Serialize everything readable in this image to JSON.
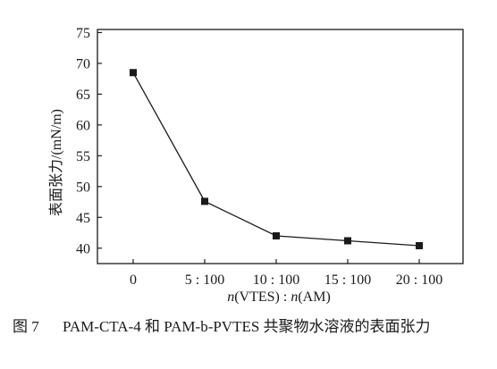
{
  "chart_data": {
    "type": "line",
    "categories": [
      "0",
      "5 : 100",
      "10 : 100",
      "15 : 100",
      "20 : 100"
    ],
    "series": [
      {
        "values": [
          68.5,
          47.6,
          42.0,
          41.2,
          40.4
        ]
      }
    ],
    "title": "",
    "xlabel": "n(VTES) : n(AM)",
    "xlabel_parts": {
      "n1": "n",
      "mid": "(VTES) : ",
      "n2": "n",
      "end": "(AM)"
    },
    "ylabel": "表面张力/(mN/m)",
    "ylim": [
      37.5,
      75.5
    ],
    "yticks": [
      40,
      45,
      50,
      55,
      60,
      65,
      70,
      75
    ],
    "ytick_labels": [
      "40",
      "45",
      "50",
      "55",
      "60",
      "65",
      "70",
      "75"
    ],
    "marker": "square",
    "grid": false,
    "line_color": "#1a1a1a"
  },
  "caption": {
    "label": "图 7",
    "text": "PAM-CTA-4 和 PAM-b-PVTES 共聚物水溶液的表面张力"
  }
}
